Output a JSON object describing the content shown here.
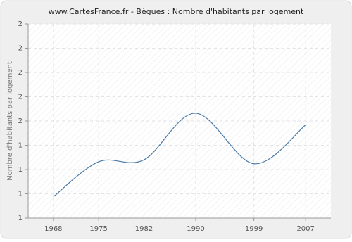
{
  "chart_data": {
    "type": "line",
    "title": "www.CartesFrance.fr - Bègues : Nombre d'habitants par logement",
    "y_label": "Nombre d'habitants par logement",
    "x": [
      1968,
      1975,
      1982,
      1990,
      1999,
      2007
    ],
    "series": [
      {
        "name": "Nombre d'habitants par logement",
        "color": "#4a7aa8",
        "values": [
          1.11,
          1.29,
          1.3,
          1.54,
          1.28,
          1.48
        ]
      }
    ],
    "xlim": [
      1964.1,
      2010.9
    ],
    "xticks": [
      1968,
      1975,
      1982,
      1990,
      1999,
      2007
    ],
    "ylim": [
      1,
      2
    ],
    "yticks": [
      1,
      {
        "value": 1.125,
        "label": "1"
      },
      {
        "value": 1.25,
        "label": "1"
      },
      {
        "value": 1.375,
        "label": "1"
      },
      {
        "value": 1.5,
        "label": "2"
      },
      {
        "value": 1.625,
        "label": "2"
      },
      {
        "value": 1.75,
        "label": "2"
      },
      {
        "value": 1.875,
        "label": "2"
      },
      2
    ],
    "grid": true
  }
}
